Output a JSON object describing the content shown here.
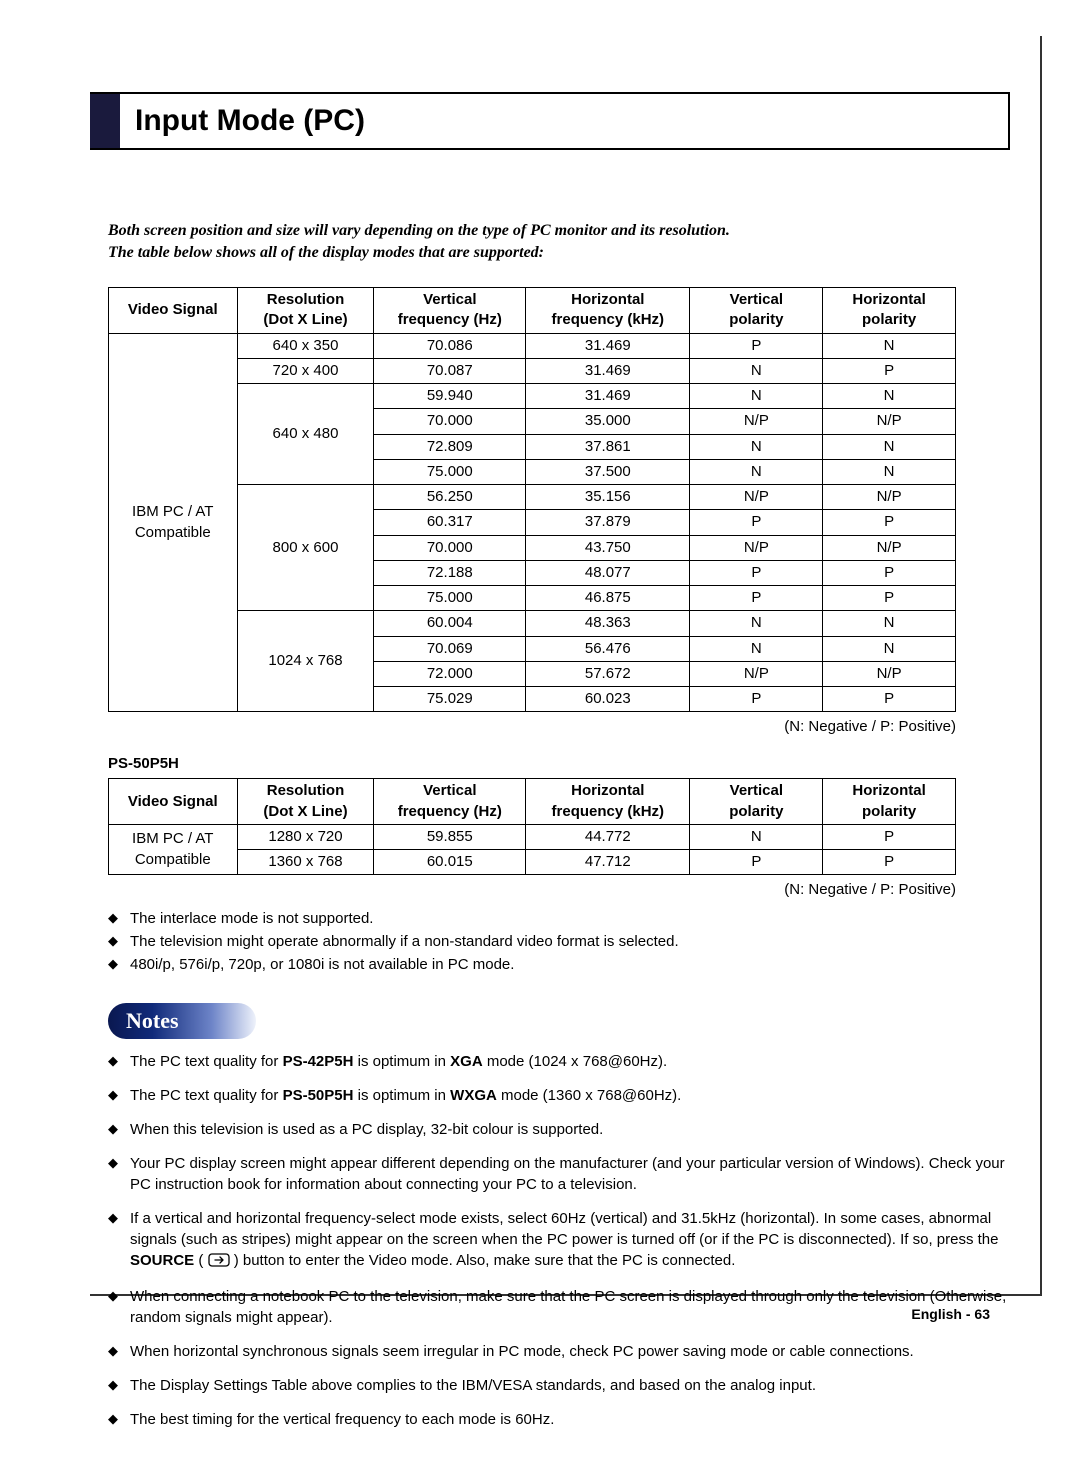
{
  "page_title": "Input Mode (PC)",
  "intro_line1": "Both screen position and size will vary depending on the type of PC monitor and its resolution.",
  "intro_line2": "The table below shows all of the display modes that are supported:",
  "legend": "(N: Negative / P: Positive)",
  "headers": {
    "sig": "Video Signal",
    "res_a": "Resolution",
    "res_b": "(Dot X Line)",
    "vf_a": "Vertical",
    "vf_b": "frequency (Hz)",
    "hf_a": "Horizontal",
    "hf_b": "frequency (kHz)",
    "vp_a": "Vertical",
    "vp_b": "polarity",
    "hp_a": "Horizontal",
    "hp_b": "polarity"
  },
  "table1": {
    "signal_a": "IBM PC / AT",
    "signal_b": "Compatible",
    "groups": [
      {
        "res": "640 x 350",
        "rows": [
          {
            "vf": "70.086",
            "hf": "31.469",
            "vp": "P",
            "hp": "N"
          }
        ]
      },
      {
        "res": "720 x 400",
        "rows": [
          {
            "vf": "70.087",
            "hf": "31.469",
            "vp": "N",
            "hp": "P"
          }
        ]
      },
      {
        "res": "640 x 480",
        "rows": [
          {
            "vf": "59.940",
            "hf": "31.469",
            "vp": "N",
            "hp": "N"
          },
          {
            "vf": "70.000",
            "hf": "35.000",
            "vp": "N/P",
            "hp": "N/P"
          },
          {
            "vf": "72.809",
            "hf": "37.861",
            "vp": "N",
            "hp": "N"
          },
          {
            "vf": "75.000",
            "hf": "37.500",
            "vp": "N",
            "hp": "N"
          }
        ]
      },
      {
        "res": "800 x 600",
        "rows": [
          {
            "vf": "56.250",
            "hf": "35.156",
            "vp": "N/P",
            "hp": "N/P"
          },
          {
            "vf": "60.317",
            "hf": "37.879",
            "vp": "P",
            "hp": "P"
          },
          {
            "vf": "70.000",
            "hf": "43.750",
            "vp": "N/P",
            "hp": "N/P"
          },
          {
            "vf": "72.188",
            "hf": "48.077",
            "vp": "P",
            "hp": "P"
          },
          {
            "vf": "75.000",
            "hf": "46.875",
            "vp": "P",
            "hp": "P"
          }
        ]
      },
      {
        "res": "1024 x 768",
        "rows": [
          {
            "vf": "60.004",
            "hf": "48.363",
            "vp": "N",
            "hp": "N"
          },
          {
            "vf": "70.069",
            "hf": "56.476",
            "vp": "N",
            "hp": "N"
          },
          {
            "vf": "72.000",
            "hf": "57.672",
            "vp": "N/P",
            "hp": "N/P"
          },
          {
            "vf": "75.029",
            "hf": "60.023",
            "vp": "P",
            "hp": "P"
          }
        ]
      }
    ]
  },
  "sub_label": "PS-50P5H",
  "table2": {
    "signal_a": "IBM PC / AT",
    "signal_b": "Compatible",
    "rows": [
      {
        "res": "1280 x 720",
        "vf": "59.855",
        "hf": "44.772",
        "vp": "N",
        "hp": "P"
      },
      {
        "res": "1360 x 768",
        "vf": "60.015",
        "hf": "47.712",
        "vp": "P",
        "hp": "P"
      }
    ]
  },
  "bullets1": {
    "b0": "The interlace mode is not supported.",
    "b1": "The television might operate abnormally if a non-standard video format is selected.",
    "b2": "480i/p, 576i/p, 720p, or 1080i is not available in PC mode."
  },
  "notes_label": "Notes",
  "notes": {
    "n0_a": "The PC text quality for ",
    "n0_b": "PS-42P5H",
    "n0_c": " is optimum in ",
    "n0_d": "XGA",
    "n0_e": " mode (1024 x 768@60Hz).",
    "n1_a": "The PC text quality for ",
    "n1_b": "PS-50P5H",
    "n1_c": " is optimum in ",
    "n1_d": "WXGA",
    "n1_e": " mode (1360 x 768@60Hz).",
    "n2": "When this television is used as a PC display, 32-bit colour is supported.",
    "n3": "Your PC display screen might appear different depending on the manufacturer (and your particular version of Windows). Check your PC instruction book for information about connecting your PC to a television.",
    "n4_a": "If a vertical and horizontal frequency-select mode exists, select 60Hz (vertical) and 31.5kHz (horizontal). In some cases, abnormal signals (such as stripes) might appear on the screen when the PC power is turned off (or if the PC is disconnected). If so, press the ",
    "n4_b": "SOURCE",
    "n4_c": " ( ",
    "n4_d": " ) button to enter the Video mode. Also, make sure that the PC is connected.",
    "n5": "When connecting a notebook PC to the television, make sure that the PC screen is displayed through only the television (Otherwise, random signals might appear).",
    "n6": "When horizontal synchronous signals seem irregular in PC mode, check PC power saving mode or cable connections.",
    "n7": "The Display Settings Table above complies to the IBM/VESA standards, and based on the analog input.",
    "n8": "The best timing for the vertical frequency to each mode is 60Hz."
  },
  "footer_a": "English - ",
  "footer_b": "63"
}
